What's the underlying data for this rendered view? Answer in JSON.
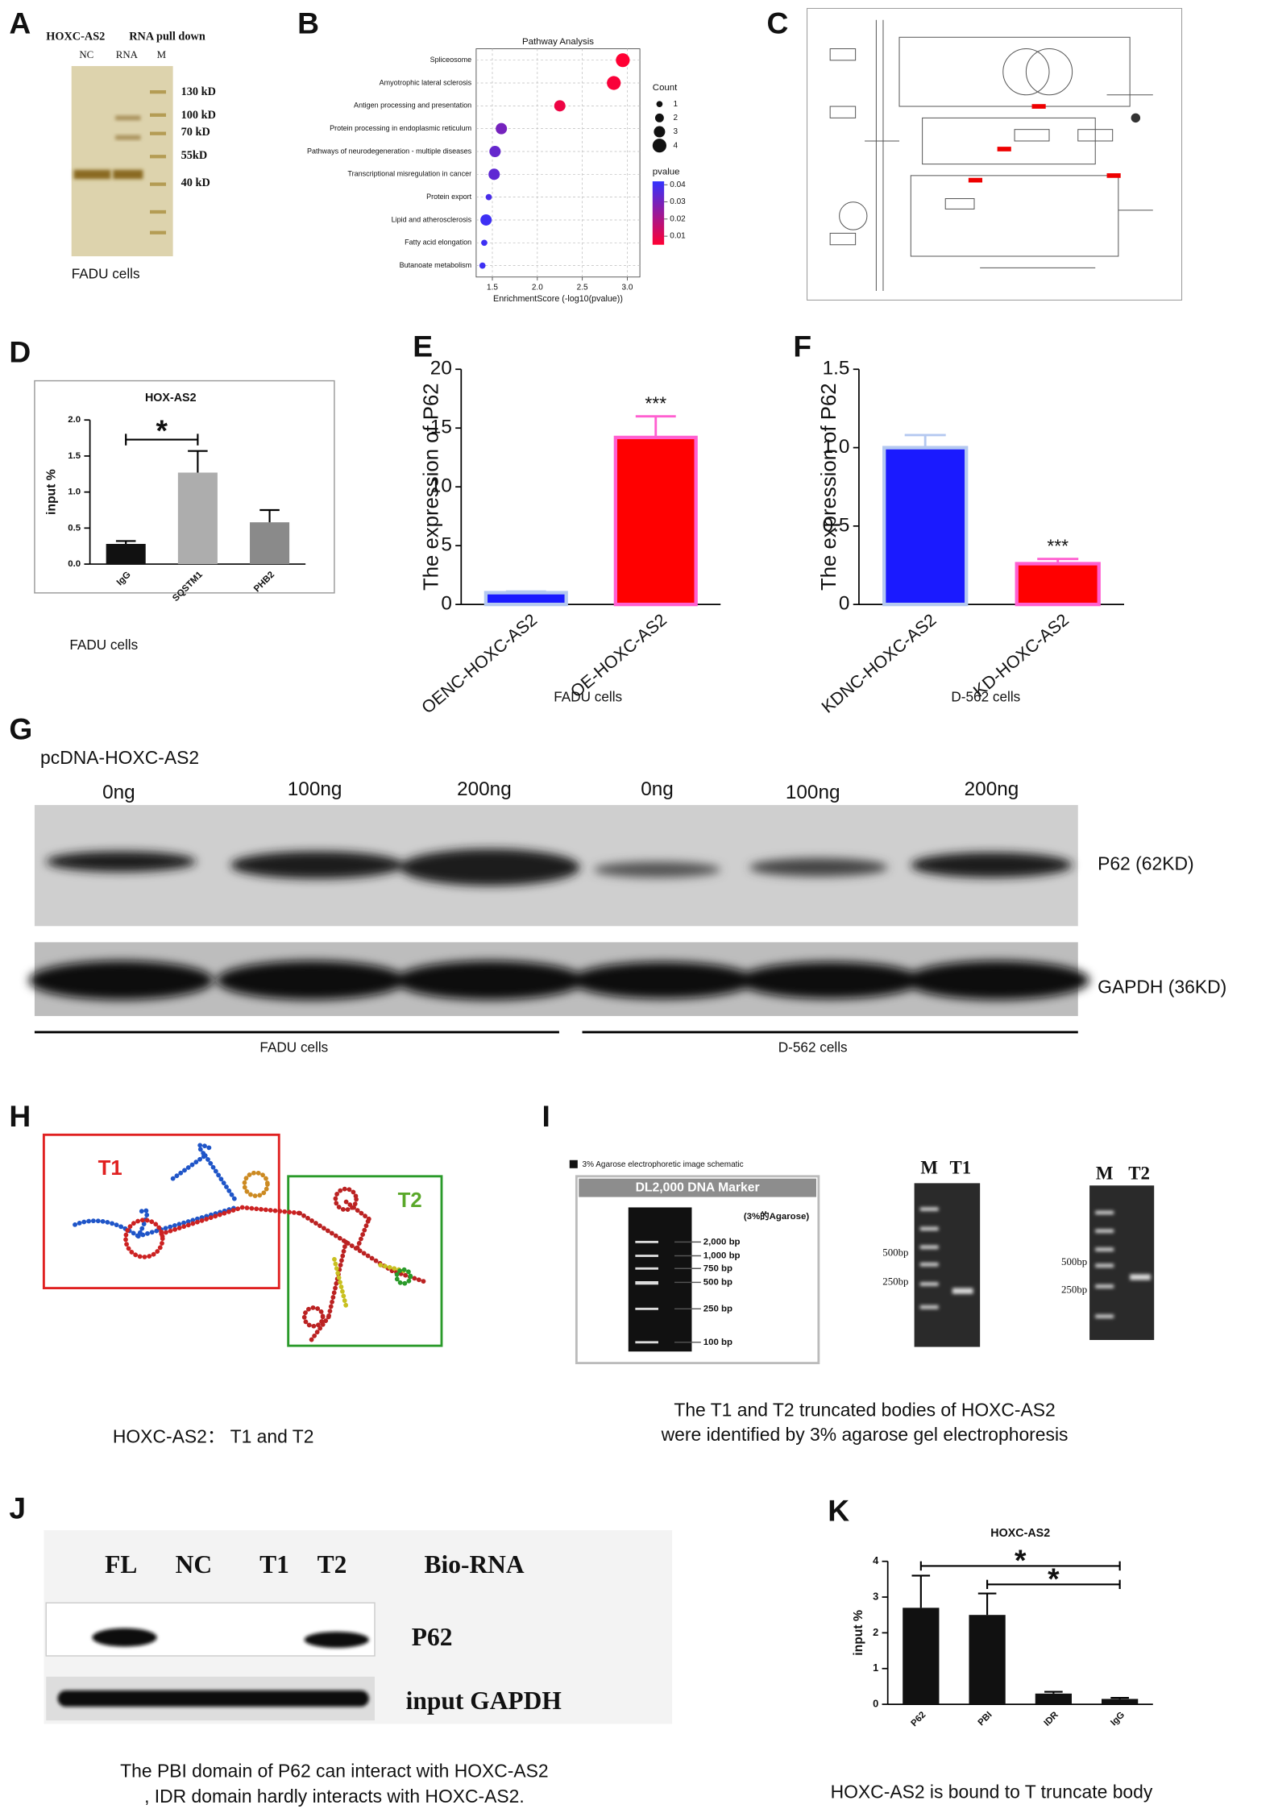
{
  "panel_labels": {
    "a": "A",
    "b": "B",
    "c": "C",
    "d": "D",
    "e": "E",
    "f": "F",
    "g": "G",
    "h": "H",
    "i": "I",
    "j": "J",
    "k": "K"
  },
  "panel_a": {
    "title": "HOXC-AS2",
    "subtitle": "RNA pull down",
    "lanes": [
      "NC",
      "RNA",
      "M"
    ],
    "markers": [
      "130 kD",
      "100 kD",
      "70 kD",
      "55kD",
      "40 kD"
    ],
    "caption": "FADU cells"
  },
  "chart_data": [
    {
      "type": "bubble",
      "title": "Pathway Analysis",
      "xlabel": "EnrichmentScore (-log10(pvalue))",
      "categories": [
        "Spliceosome",
        "Amyotrophic lateral sclerosis",
        "Antigen processing and presentation",
        "Protein processing in endoplasmic reticulum",
        "Pathways of neurodegeneration - multiple diseases",
        "Transcriptional misregulation in cancer",
        "Protein export",
        "Lipid and atherosclerosis",
        "Fatty acid elongation",
        "Butanoate metabolism"
      ],
      "values": [
        2.95,
        2.85,
        2.25,
        1.6,
        1.53,
        1.52,
        1.46,
        1.43,
        1.41,
        1.39
      ],
      "sizes": [
        4,
        4,
        3,
        3,
        3,
        3,
        1,
        3,
        1,
        1
      ],
      "pvalues": [
        0.005,
        0.006,
        0.008,
        0.03,
        0.033,
        0.034,
        0.038,
        0.04,
        0.04,
        0.04
      ],
      "xlim": [
        1.32,
        3.14
      ],
      "xticks": [
        1.5,
        {
          "value": 2,
          "label": "2.0"
        },
        2.5,
        {
          "value": 3,
          "label": "3.0"
        }
      ],
      "size_title": "Count",
      "size_legend": [
        1,
        2,
        3,
        4
      ],
      "color_title": "pvalue",
      "color_ticks": [
        0.04,
        0.03,
        0.02,
        0.01
      ],
      "clim": [
        0.005,
        0.042
      ],
      "colors": [
        "#ff0033",
        "#3333ff"
      ],
      "grid": true
    },
    {
      "type": "bar",
      "title": "HOX-AS2",
      "ylabel": "input %",
      "categories": [
        "IgG",
        "SQSTM1",
        "PHB2"
      ],
      "values": [
        0.28,
        1.27,
        0.58
      ],
      "errors": [
        0.04,
        0.3,
        0.17
      ],
      "colors": [
        "#111111",
        "#adadad",
        "#8a8a8a"
      ],
      "ylim": [
        0,
        2
      ],
      "yticks": [
        {
          "value": 0,
          "label": "0.0"
        },
        0.5,
        {
          "value": 1,
          "label": "1.0"
        },
        1.5,
        {
          "value": 2,
          "label": "2.0"
        }
      ],
      "annotations": [
        "*"
      ],
      "caption": "FADU cells"
    },
    {
      "type": "bar",
      "ylabel": "The expression of P62",
      "categories": [
        "OENC-HOXC-AS2",
        "OE-HOXC-AS2"
      ],
      "values": [
        1,
        14.2
      ],
      "errors": [
        0.1,
        1.8
      ],
      "colors": [
        "#1a1aff",
        "#ff0000"
      ],
      "edge_colors": [
        "#b4c8f0",
        "#ff5fd0"
      ],
      "ylim": [
        0,
        20
      ],
      "yticks": [
        0,
        5,
        10,
        15,
        20
      ],
      "annotations": [
        "***"
      ],
      "caption": "FADU cells"
    },
    {
      "type": "bar",
      "ylabel": "The expression of P62",
      "categories": [
        "KDNC-HOXC-AS2",
        "KD-HOXC-AS2"
      ],
      "values": [
        1,
        0.26
      ],
      "errors": [
        0.08,
        0.03
      ],
      "colors": [
        "#1a1aff",
        "#ff0000"
      ],
      "edge_colors": [
        "#b4c8f0",
        "#ff5fd0"
      ],
      "ylim": [
        0,
        1.5
      ],
      "yticks": [
        0,
        0.5,
        {
          "value": 1,
          "label": "1.0"
        },
        1.5
      ],
      "annotations": [
        "***"
      ],
      "caption": "D-562 cells"
    },
    {
      "type": "bar",
      "title": "HOXC-AS2",
      "ylabel": "input %",
      "categories": [
        "P62",
        "PBI",
        "IDR",
        "IgG"
      ],
      "values": [
        2.7,
        2.5,
        0.3,
        0.15
      ],
      "errors": [
        0.9,
        0.6,
        0.05,
        0.03
      ],
      "colors": [
        "#111111",
        "#111111",
        "#111111",
        "#111111"
      ],
      "ylim": [
        0,
        4
      ],
      "yticks": [
        0,
        1,
        2,
        3,
        4
      ],
      "annotations": [
        "*",
        "*"
      ],
      "caption": "HOXC-AS2 is bound to T truncate body"
    }
  ],
  "panel_g": {
    "construct": "pcDNA-HOXC-AS2",
    "lanes": [
      "0ng",
      "100ng",
      "200ng",
      "0ng",
      "100ng",
      "200ng"
    ],
    "bands": [
      "P62 (62KD)",
      "GAPDH (36KD)"
    ],
    "groups": [
      "FADU cells",
      "D-562 cells"
    ]
  },
  "panel_h": {
    "regions": [
      "T1",
      "T2"
    ],
    "caption": "HOXC-AS2： T1 and T2"
  },
  "panel_i": {
    "schematic_title": "3% Agarose electrophoretic image schematic",
    "marker_name": "DL2,000 DNA Marker",
    "gel_note": "(3%的Agarose)",
    "marker_bands": [
      "2,000 bp",
      "1,000 bp",
      "750 bp",
      "500 bp",
      "250 bp",
      "100 bp"
    ],
    "gels": [
      {
        "lanes": [
          "M",
          "T1"
        ],
        "sizes": [
          "500bp",
          "250bp"
        ]
      },
      {
        "lanes": [
          "M",
          "T2"
        ],
        "sizes": [
          "500bp",
          "250bp"
        ]
      }
    ],
    "caption": [
      "The T1 and T2 truncated bodies of HOXC-AS2",
      "were identified by 3% agarose gel electrophoresis"
    ]
  },
  "panel_j": {
    "lanes": [
      "FL",
      "NC",
      "T1",
      "T2"
    ],
    "probe": "Bio-RNA",
    "bands": [
      "P62",
      "input GAPDH"
    ],
    "caption": [
      "The PBI domain of P62 can interact with HOXC-AS2",
      ", IDR domain hardly interacts with HOXC-AS2."
    ]
  }
}
